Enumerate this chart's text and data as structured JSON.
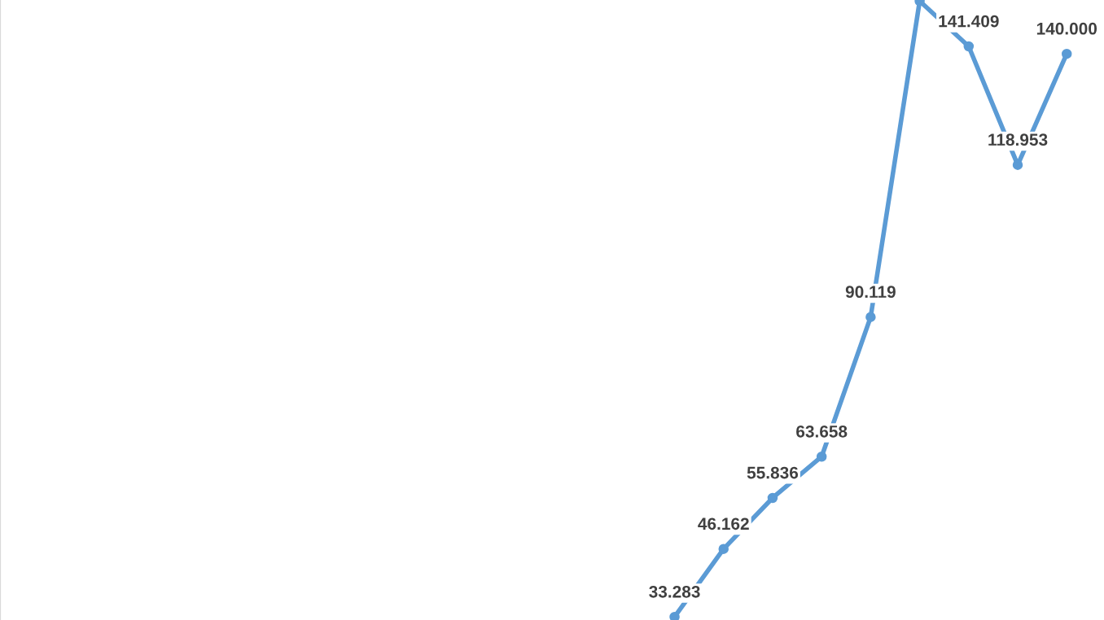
{
  "chart_data": {
    "type": "line",
    "categories": [
      null,
      null,
      null,
      null,
      null,
      null,
      null,
      null,
      null,
      null,
      null,
      null,
      null,
      null,
      null,
      null,
      null,
      null,
      null,
      null,
      null,
      null
    ],
    "series": [
      {
        "color": "#5b9bd5",
        "values": [
          null,
          null,
          null,
          null,
          null,
          null,
          null,
          null,
          null,
          null,
          null,
          null,
          null,
          33.283,
          46.162,
          55.836,
          63.658,
          90.119,
          150,
          141.409,
          118.953,
          140.0
        ],
        "value_labels": [
          null,
          null,
          null,
          null,
          null,
          null,
          null,
          null,
          null,
          null,
          null,
          null,
          null,
          "33.283",
          "46.162",
          "55.836",
          "63.658",
          "90.119",
          null,
          "141.409",
          "118.953",
          "140.000"
        ]
      }
    ],
    "ylim": [
      32.7,
      150.2
    ],
    "marker": "circle",
    "line_style": "solid",
    "grid": false
  }
}
